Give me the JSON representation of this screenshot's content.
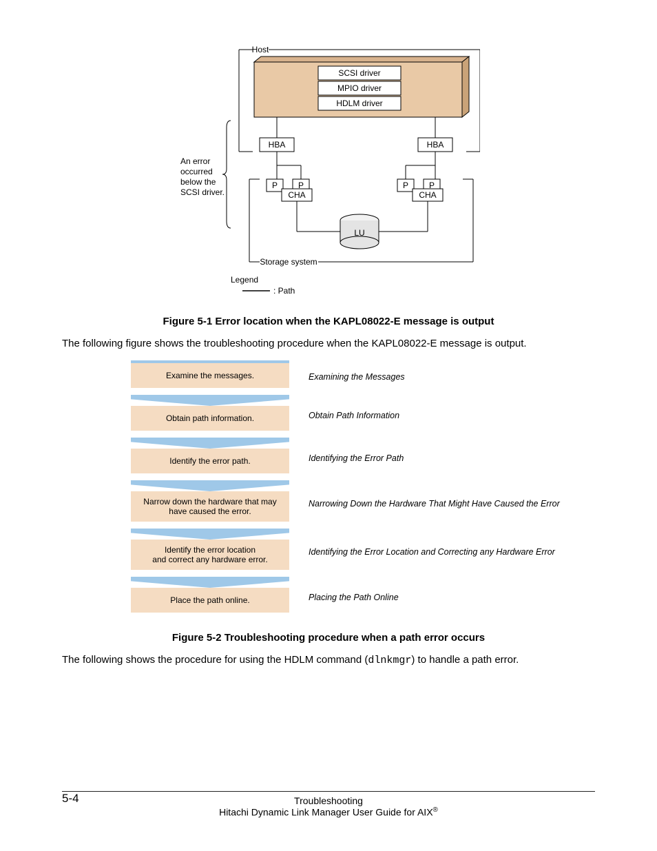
{
  "fig1": {
    "host_label": "Host",
    "drivers": [
      "SCSI driver",
      "MPIO driver",
      "HDLM driver"
    ],
    "hba": "HBA",
    "p": "P",
    "cha": "CHA",
    "lu": "LU",
    "storage_label": "Storage system",
    "legend_title": "Legend",
    "legend_path": ": Path",
    "annotation": [
      "An error",
      "occurred",
      "below the",
      "SCSI driver."
    ],
    "colors": {
      "driver_fill": "#e9c9a6",
      "driver_stroke": "#000000",
      "box_fill": "#ffffff",
      "lu_top": "#f2f2f2",
      "lu_side": "#e4e4e4",
      "line": "#000000"
    },
    "caption": "Figure 5-1 Error location when the KAPL08022-E message is output"
  },
  "para1": "The following figure shows the troubleshooting procedure when the KAPL08022-E message is output.",
  "fig2": {
    "steps": [
      {
        "text": [
          "Examine the messages."
        ],
        "ref": "Examining the Messages"
      },
      {
        "text": [
          "Obtain path information."
        ],
        "ref": "Obtain Path Information"
      },
      {
        "text": [
          "Identify the error path."
        ],
        "ref": "Identifying the Error Path"
      },
      {
        "text": [
          "Narrow down the hardware that may",
          "have caused the error."
        ],
        "ref": "Narrowing Down the Hardware That Might Have Caused the Error"
      },
      {
        "text": [
          "Identify the error location",
          "and correct any hardware error."
        ],
        "ref": "Identifying the Error Location and Correcting any Hardware Error"
      },
      {
        "text": [
          "Place the path online."
        ],
        "ref": "Placing the Path Online"
      }
    ],
    "colors": {
      "arrow_top": "#9fc8e8",
      "body_fill": "#f5dcc2",
      "stroke": "#000000"
    },
    "caption": "Figure 5-2 Troubleshooting procedure when a path error occurs"
  },
  "para2_pre": "The following shows the procedure for using the HDLM command (",
  "para2_cmd": "dlnkmgr",
  "para2_post": ") to handle a path error.",
  "footer": {
    "page_num": "5-4",
    "section": "Troubleshooting",
    "book": "Hitachi Dynamic Link Manager User Guide for AIX",
    "reg": "®"
  }
}
